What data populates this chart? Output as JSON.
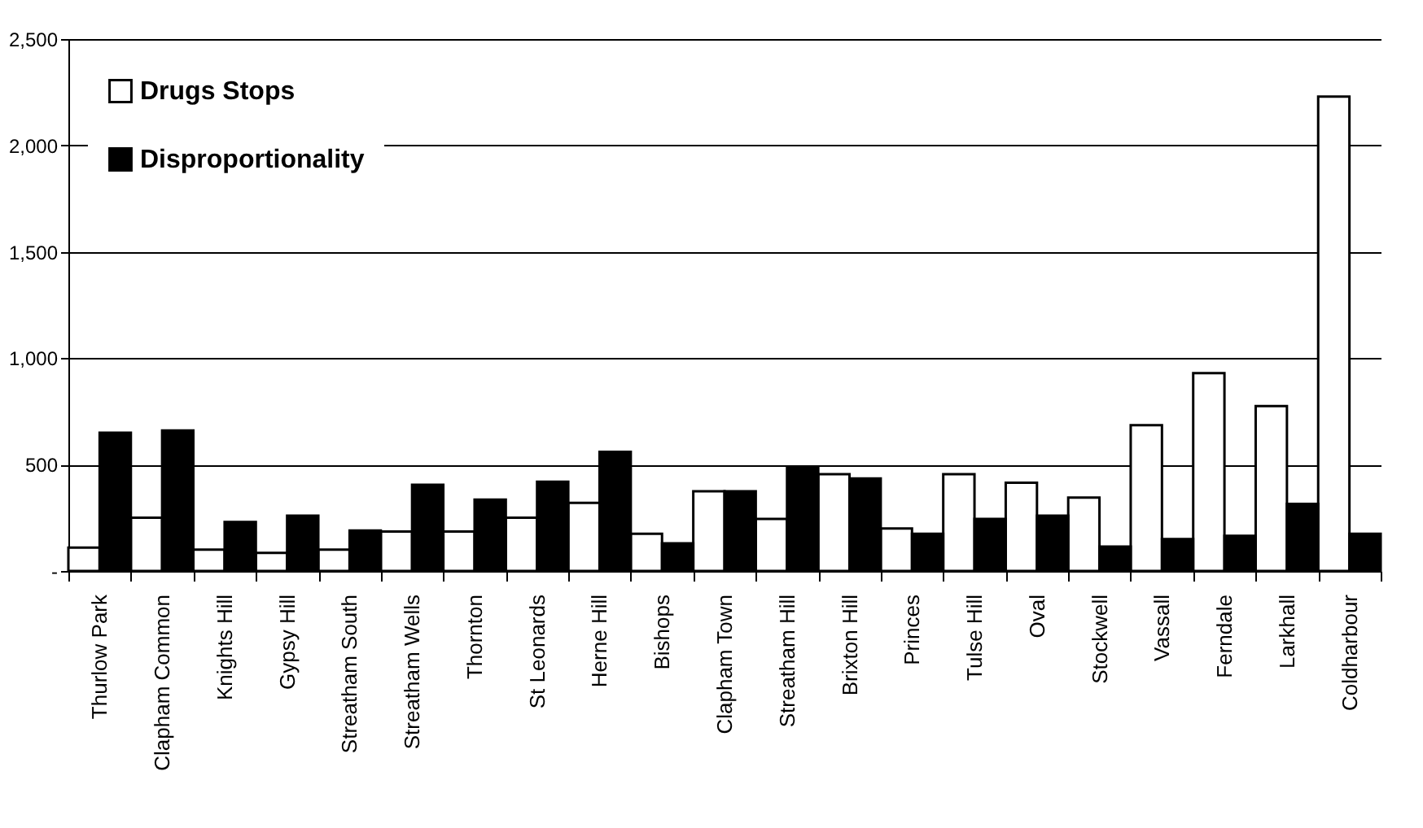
{
  "chart_data": {
    "type": "bar",
    "categories": [
      "Thurlow Park",
      "Clapham Common",
      "Knights Hill",
      "Gypsy Hill",
      "Streatham South",
      "Streatham Wells",
      "Thornton",
      "St Leonards",
      "Herne Hill",
      "Bishops",
      "Clapham Town",
      "Streatham Hill",
      "Brixton Hill",
      "Princes",
      "Tulse Hill",
      "Oval",
      "Stockwell",
      "Vassall",
      "Ferndale",
      "Larkhall",
      "Coldharbour"
    ],
    "series": [
      {
        "name": "Drugs Stops",
        "color": "#ffffff",
        "values": [
          110,
          250,
          100,
          85,
          100,
          185,
          185,
          250,
          320,
          175,
          375,
          245,
          455,
          200,
          455,
          415,
          345,
          685,
          930,
          775,
          2230
        ]
      },
      {
        "name": "Disproportionality",
        "color": "#000000",
        "values": [
          650,
          660,
          230,
          260,
          190,
          405,
          335,
          420,
          560,
          130,
          375,
          490,
          435,
          175,
          245,
          260,
          115,
          150,
          165,
          315,
          175
        ]
      }
    ],
    "ylim": [
      0,
      2500
    ],
    "yticks": [
      {
        "value": 0,
        "label": "-"
      },
      {
        "value": 500,
        "label": "500"
      },
      {
        "value": 1000,
        "label": "1,000"
      },
      {
        "value": 1500,
        "label": "1,500"
      },
      {
        "value": 2000,
        "label": "2,000"
      },
      {
        "value": 2500,
        "label": "2,500"
      }
    ],
    "grid": "y",
    "legend": "top left"
  }
}
